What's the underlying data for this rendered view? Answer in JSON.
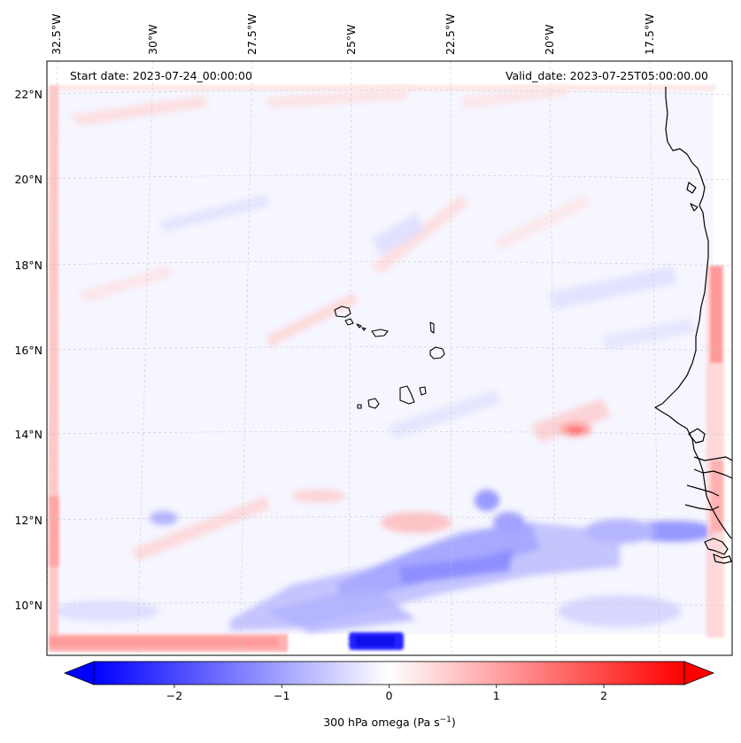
{
  "map": {
    "start_label": "Start date: 2023-07-24_00:00:00",
    "valid_label": "Valid_date: 2023-07-25T05:00:00.00",
    "lon_ticks": [
      "32.5°W",
      "30°W",
      "27.5°W",
      "25°W",
      "22.5°W",
      "20°W",
      "17.5°W"
    ],
    "lat_ticks": [
      "22°N",
      "20°N",
      "18°N",
      "16°N",
      "14°N",
      "12°N",
      "10°N"
    ],
    "colors": {
      "negative": "#0000ff",
      "zero": "#ffffff",
      "positive": "#ff0000",
      "coast": "#000000"
    }
  },
  "colorbar": {
    "min": -2.75,
    "max": 2.75,
    "ticks": [
      "−2",
      "−1",
      "0",
      "1",
      "2"
    ],
    "tick_values": [
      -2,
      -1,
      0,
      1,
      2
    ],
    "label_prefix": "300 hPa omega (Pa s",
    "label_exp": "−1",
    "label_suffix": ")"
  }
}
